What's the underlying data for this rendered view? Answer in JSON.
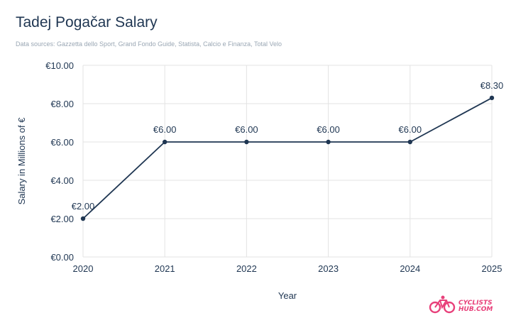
{
  "header": {
    "title": "Tadej Pogačar Salary",
    "subtitle": "Data sources: Gazzetta dello Sport, Grand Fondo Guide, Statista, Calcio e Finanza, Total Velo"
  },
  "logo": {
    "line1": "CYCLISTS",
    "line2": "HUB.COM",
    "icon": "bicycle-icon",
    "color": "#e8407a"
  },
  "colors": {
    "line": "#1f3652",
    "grid": "#e3e3e3",
    "text": "#1f3652"
  },
  "chart_data": {
    "type": "line",
    "title": "Tadej Pogačar Salary",
    "xlabel": "Year",
    "ylabel": "Salary in Millions of €",
    "x": [
      "2020",
      "2021",
      "2022",
      "2023",
      "2024",
      "2025"
    ],
    "series": [
      {
        "values": [
          2.0,
          6.0,
          6.0,
          6.0,
          6.0,
          8.3
        ],
        "labels": [
          "€2.00",
          "€6.00",
          "€6.00",
          "€6.00",
          "€6.00",
          "€8.30"
        ]
      }
    ],
    "yticks": [
      0,
      2,
      4,
      6,
      8,
      10
    ],
    "ytick_labels": [
      "€0.00",
      "€2.00",
      "€4.00",
      "€6.00",
      "€8.00",
      "€10.00"
    ],
    "ylim": [
      0,
      10
    ],
    "grid": true,
    "legend": "none"
  }
}
